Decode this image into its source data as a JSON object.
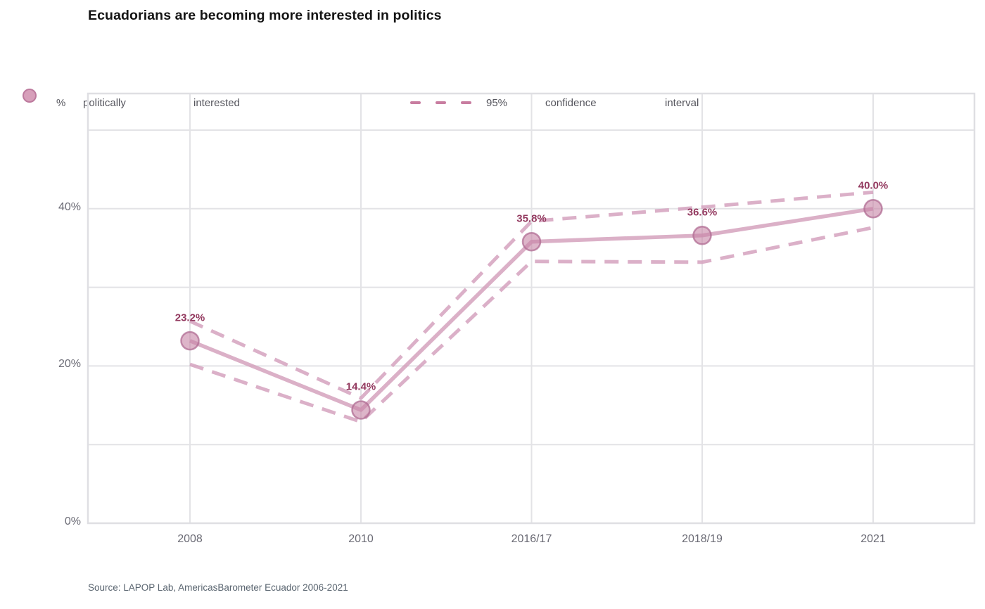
{
  "title": "Ecuadorians are becoming more interested in politics",
  "legend": {
    "series1": {
      "marker": "circle-icon",
      "words": [
        "%",
        "politically",
        "interested"
      ]
    },
    "series2": {
      "marker": "dashed-line-icon",
      "words": [
        "95%",
        "confidence",
        "interval"
      ]
    }
  },
  "source": "Source: LAPOP Lab, AmericasBarometer Ecuador 2006-2021",
  "colors": {
    "line": "#d29cb9",
    "ci_dash": "#d5a2be",
    "marker_fill": "#c783a5",
    "marker_stroke": "#b06c93",
    "point_label": "#93395f",
    "grid": "#e3e3e6",
    "frame": "#dfdfe3",
    "axis_text": "#6b6b75",
    "title_text": "#141414"
  },
  "chart_data": {
    "type": "line",
    "title": "Ecuadorians are becoming more interested in politics",
    "x": [
      "2008",
      "2010",
      "2016/17",
      "2018/19",
      "2021"
    ],
    "series": [
      {
        "name": "% politically interested",
        "style": "solid-markers",
        "values": [
          23.2,
          14.4,
          35.8,
          36.6,
          40.0
        ]
      },
      {
        "name": "95% confidence interval (upper)",
        "style": "dashed",
        "values": [
          25.7,
          15.9,
          38.4,
          40.2,
          42.1
        ]
      },
      {
        "name": "95% confidence interval (lower)",
        "style": "dashed",
        "values": [
          20.2,
          12.9,
          33.3,
          33.2,
          37.6
        ]
      }
    ],
    "point_labels": [
      "23.2%",
      "14.4%",
      "35.8%",
      "36.6%",
      "40.0%"
    ],
    "yticks": [
      {
        "value": 0,
        "label": "0%"
      },
      {
        "value": 20,
        "label": "20%"
      },
      {
        "value": 40,
        "label": "40%"
      }
    ],
    "gridlines_y": [
      0,
      10,
      20,
      30,
      40,
      50
    ],
    "ylim": [
      0,
      54.7
    ],
    "grid": true,
    "legend_position": "top",
    "xlabel": "",
    "ylabel": ""
  }
}
